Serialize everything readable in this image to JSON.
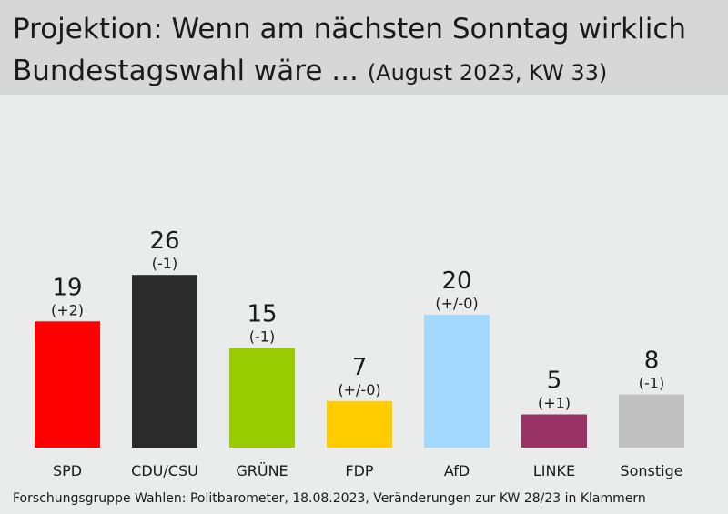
{
  "title_line1": "Projektion: Wenn am nächsten Sonntag wirklich",
  "title_line2": "Bundestagswahl wäre ...",
  "subtitle": "(August 2023, KW 33)",
  "footer": "Forschungsgruppe Wahlen: Politbarometer, 18.08.2023, Veränderungen zur KW 28/23 in Klammern",
  "chart_data": {
    "type": "bar",
    "categories": [
      "SPD",
      "CDU/CSU",
      "GRÜNE",
      "FDP",
      "AfD",
      "LINKE",
      "Sonstige"
    ],
    "values": [
      19,
      26,
      15,
      7,
      20,
      5,
      8
    ],
    "changes": [
      "(+2)",
      "(-1)",
      "(-1)",
      "(+/-0)",
      "(+/-0)",
      "(+1)",
      "(-1)"
    ],
    "colors": [
      "#ff0000",
      "#2b2b2b",
      "#99cc00",
      "#ffcc00",
      "#a3d9ff",
      "#993366",
      "#c0c0c0"
    ],
    "title": "Projektion: Wenn am nächsten Sonntag wirklich Bundestagswahl wäre ...",
    "subtitle": "(August 2023, KW 33)",
    "ylim": [
      0,
      30
    ]
  }
}
